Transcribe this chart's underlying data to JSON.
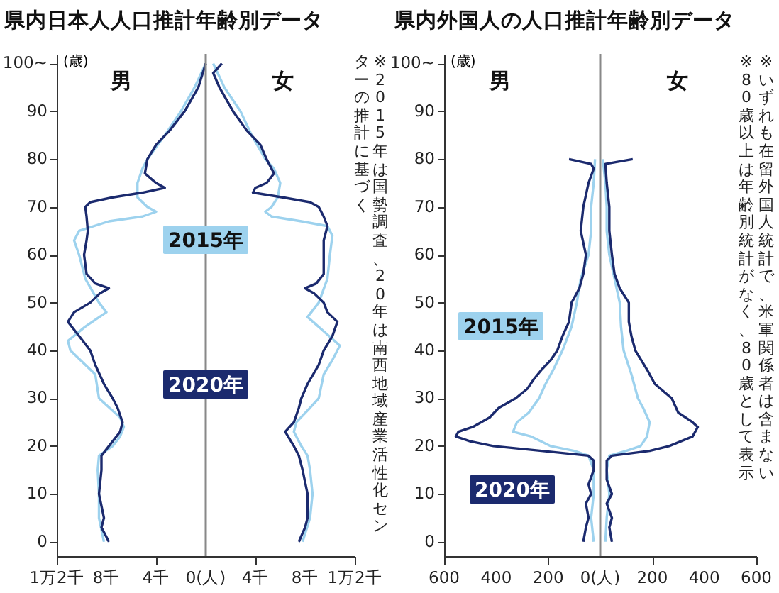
{
  "chart_data": [
    {
      "type": "line",
      "title": "県内日本人人口推計年齢別データ",
      "ylabel": "(歳)",
      "xlim": [
        -12,
        12
      ],
      "xticks": [
        {
          "value": -12,
          "label": "1万2千"
        },
        {
          "value": -8,
          "label": "8千"
        },
        {
          "value": -4,
          "label": "4千"
        },
        {
          "value": 0,
          "label": "0(人)"
        },
        {
          "value": 4,
          "label": "4千"
        },
        {
          "value": 8,
          "label": "8千"
        },
        {
          "value": 12,
          "label": "1万2千"
        }
      ],
      "ylim": [
        -3,
        102
      ],
      "yticks": [
        0,
        10,
        20,
        30,
        40,
        50,
        60,
        70,
        80,
        90,
        {
          "value": 100,
          "label": "100~"
        }
      ],
      "series": [
        {
          "name": "2015年",
          "color": "#9dd2ee",
          "x": [
            -8.2,
            -8.6,
            -8.6,
            -8.7,
            -8.6,
            -7.5,
            -6.9,
            -6.6,
            -6.9,
            -8.6,
            -8.9,
            -10.9,
            -11.1,
            -9.7,
            -8,
            -8.6,
            -9.7,
            -10,
            -10.2,
            -10.6,
            -10.2,
            -7.8,
            -5.1,
            -4,
            -4.7,
            -5.5,
            -5.5,
            -5.1,
            -4.7,
            -3.3,
            -2,
            -0.9,
            0
          ],
          "values": [
            0,
            5,
            10,
            15,
            18,
            20,
            22,
            24,
            26,
            30,
            35,
            40,
            42,
            45,
            48,
            50,
            55,
            58,
            60,
            63,
            65,
            67,
            68,
            69,
            70,
            72,
            75,
            78,
            80,
            85,
            90,
            95,
            100
          ]
        },
        {
          "color": "#9dd2ee",
          "x": [
            7.8,
            8.4,
            8.6,
            8.4,
            8.2,
            7.7,
            7.1,
            7.3,
            8.4,
            9.1,
            9.5,
            10.2,
            10.8,
            9.5,
            8.2,
            9.1,
            9.8,
            10,
            10.2,
            9.8,
            7.7,
            5.3,
            4.8,
            5.3,
            5.8,
            6,
            5.5,
            4.8,
            3.7,
            2.8,
            1.5,
            0.6
          ],
          "values": [
            0,
            5,
            10,
            15,
            18,
            20,
            23,
            25,
            28,
            30,
            35,
            38,
            41,
            44,
            47,
            50,
            55,
            60,
            64,
            66,
            67,
            68,
            69,
            70,
            72,
            75,
            78,
            80,
            85,
            90,
            95,
            100
          ]
        },
        {
          "name": "2020年",
          "color": "#1b2a6e",
          "x": [
            -7.8,
            -8.4,
            -8.2,
            -8.6,
            -8.4,
            -8.4,
            -7.8,
            -6.9,
            -6.7,
            -7.1,
            -7.5,
            -8.2,
            -8.9,
            -9.3,
            -10.2,
            -11.1,
            -10.6,
            -9.3,
            -8.5,
            -7.8,
            -8.9,
            -9.6,
            -9.8,
            -9.6,
            -9.5,
            -9.6,
            -9.7,
            -9.3,
            -7.5,
            -5.1,
            -3.3,
            -4,
            -4.9,
            -4.7,
            -4,
            -2.9,
            -1.7,
            -0.6,
            0
          ],
          "values": [
            0,
            3,
            5,
            10,
            15,
            18,
            20,
            23,
            25,
            28,
            30,
            33,
            37,
            40,
            43,
            46,
            48,
            50,
            52,
            53,
            54,
            56,
            60,
            63,
            65,
            68,
            70,
            71,
            72,
            73,
            74,
            75,
            77,
            80,
            83,
            86,
            90,
            95,
            100
          ]
        },
        {
          "color": "#1b2a6e",
          "x": [
            7.5,
            8,
            8.2,
            8.2,
            7.8,
            7.5,
            7.1,
            6.4,
            7.1,
            7.5,
            7.7,
            8.2,
            9.1,
            9.5,
            10.2,
            10.6,
            9.8,
            9.5,
            8.7,
            8,
            8.9,
            9.5,
            9.5,
            9.5,
            9.8,
            9.5,
            9.1,
            8.4,
            6.2,
            3.8,
            4,
            4.9,
            5.5,
            4.9,
            4.4,
            3.3,
            2.2,
            1.1,
            0.6,
            1.3
          ],
          "values": [
            0,
            3,
            5,
            10,
            15,
            18,
            20,
            23,
            25,
            28,
            30,
            33,
            37,
            40,
            43,
            46,
            48,
            50,
            52,
            53,
            54,
            56,
            60,
            63,
            66,
            68,
            70,
            71,
            72,
            73,
            74,
            75,
            77,
            80,
            83,
            86,
            90,
            95,
            98,
            100
          ]
        }
      ],
      "ref_lines": [
        {
          "axis": "x",
          "value": 0,
          "color": "#888888"
        }
      ],
      "annotations": [
        "男",
        "女",
        "※2015年は国勢調査、20年は南西地域産業活性化センターの推計に基づく"
      ]
    },
    {
      "type": "line",
      "title": "県内外国人の人口推計年齢別データ",
      "ylabel": "(歳)",
      "xlim": [
        -600,
        600
      ],
      "xticks": [
        {
          "value": -600,
          "label": "600"
        },
        {
          "value": -400,
          "label": "400"
        },
        {
          "value": -200,
          "label": "200"
        },
        {
          "value": 0,
          "label": "0(人)"
        },
        200,
        400,
        600
      ],
      "ylim": [
        -3,
        102
      ],
      "yticks": [
        0,
        10,
        20,
        30,
        40,
        50,
        60,
        70,
        80,
        90,
        {
          "value": 100,
          "label": "100~"
        }
      ],
      "series": [
        {
          "name": "2015年",
          "color": "#9dd2ee",
          "x": [
            -25,
            -35,
            -25,
            -25,
            -45,
            -100,
            -190,
            -265,
            -335,
            -320,
            -275,
            -235,
            -210,
            -180,
            -145,
            -110,
            -90,
            -75,
            -45,
            -35,
            -35,
            -25,
            -20
          ],
          "values": [
            0,
            5,
            10,
            15,
            18,
            19,
            20,
            22,
            23,
            25,
            27,
            30,
            33,
            36,
            40,
            45,
            50,
            55,
            60,
            65,
            70,
            75,
            80
          ]
        },
        {
          "color": "#9dd2ee",
          "x": [
            20,
            25,
            35,
            25,
            35,
            100,
            155,
            180,
            190,
            165,
            145,
            120,
            90,
            80,
            75,
            55,
            35,
            25,
            25,
            20,
            10
          ],
          "values": [
            0,
            5,
            10,
            15,
            18,
            19,
            20,
            22,
            25,
            28,
            30,
            35,
            40,
            45,
            50,
            55,
            60,
            65,
            70,
            75,
            80
          ]
        },
        {
          "name": "2020年",
          "color": "#1b2a6e",
          "x": [
            -65,
            -55,
            -45,
            -55,
            -35,
            -45,
            -25,
            -25,
            -45,
            -225,
            -410,
            -500,
            -555,
            -545,
            -490,
            -425,
            -390,
            -325,
            -280,
            -255,
            -225,
            -190,
            -165,
            -145,
            -120,
            -110,
            -80,
            -65,
            -55,
            -75,
            -65,
            -45,
            -25,
            -35,
            -120
          ],
          "values": [
            0,
            3,
            5,
            8,
            10,
            12,
            15,
            17,
            18,
            19,
            20,
            21,
            22,
            23,
            24,
            26,
            28,
            30,
            32,
            34,
            36,
            38,
            40,
            43,
            46,
            50,
            53,
            56,
            60,
            65,
            70,
            75,
            78,
            79,
            80
          ]
        },
        {
          "color": "#1b2a6e",
          "x": [
            45,
            35,
            45,
            25,
            45,
            25,
            25,
            45,
            190,
            265,
            355,
            375,
            355,
            300,
            275,
            210,
            180,
            135,
            120,
            110,
            110,
            75,
            55,
            45,
            35,
            35,
            25,
            20,
            125
          ],
          "values": [
            0,
            3,
            5,
            8,
            10,
            13,
            17,
            18,
            19,
            20,
            22,
            24,
            25,
            27,
            30,
            33,
            36,
            40,
            43,
            46,
            50,
            53,
            56,
            60,
            65,
            70,
            75,
            79,
            80
          ]
        }
      ],
      "ref_lines": [
        {
          "axis": "x",
          "value": 0,
          "color": "#888888"
        }
      ],
      "annotations": [
        "男",
        "女",
        "※いずれも在留外国人統計で、米軍関係者は含まない",
        "※80歳以上は年齢別統計がなく、80歳として表示"
      ]
    }
  ]
}
